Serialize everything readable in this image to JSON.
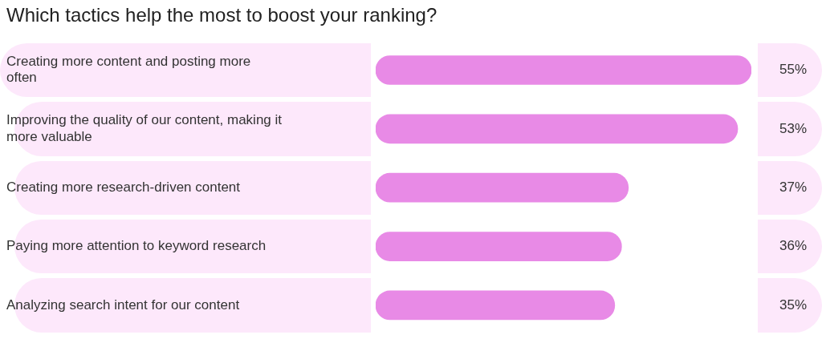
{
  "chart_data": {
    "type": "bar",
    "orientation": "horizontal",
    "title": "Which tactics help the most to boost your ranking?",
    "categories": [
      "Creating more content and posting more often",
      "Improving the quality of our content, making it more valuable",
      "Creating more research-driven content",
      "Paying more attention to keyword research",
      "Analyzing search intent for our content"
    ],
    "values": [
      55,
      53,
      37,
      36,
      35
    ],
    "value_labels": [
      "55%",
      "53%",
      "37%",
      "36%",
      "35%"
    ],
    "color": "#e88ae6"
  }
}
